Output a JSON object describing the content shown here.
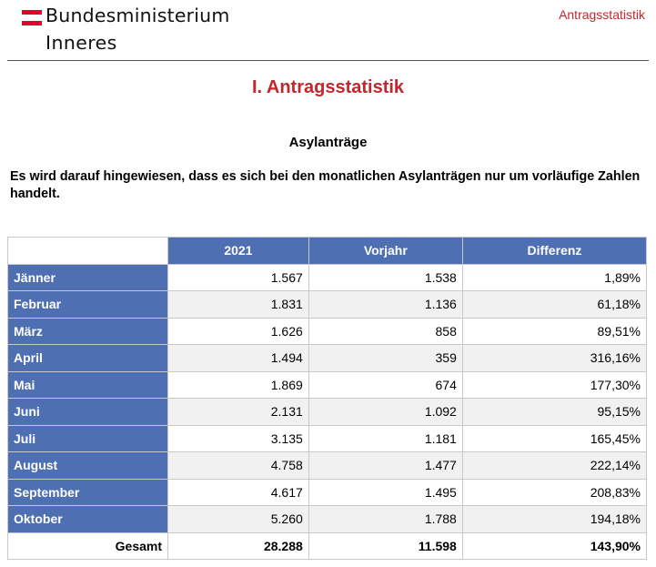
{
  "header": {
    "logo_line1": "Bundesministerium",
    "logo_line2": "Inneres",
    "right_label": "Antragsstatistik"
  },
  "title": "I.  Antragsstatistik",
  "subtitle": "Asylanträge",
  "notice": "Es wird darauf hingewiesen, dass es sich bei den monatlichen Asylanträgen nur um vorläufige Zahlen handelt.",
  "table": {
    "columns": [
      "2021",
      "Vorjahr",
      "Differenz"
    ],
    "rows": [
      {
        "month": "Jänner",
        "year2021": "1.567",
        "prior": "1.538",
        "diff": "1,89%"
      },
      {
        "month": "Februar",
        "year2021": "1.831",
        "prior": "1.136",
        "diff": "61,18%"
      },
      {
        "month": "März",
        "year2021": "1.626",
        "prior": "858",
        "diff": "89,51%"
      },
      {
        "month": "April",
        "year2021": "1.494",
        "prior": "359",
        "diff": "316,16%"
      },
      {
        "month": "Mai",
        "year2021": "1.869",
        "prior": "674",
        "diff": "177,30%"
      },
      {
        "month": "Juni",
        "year2021": "2.131",
        "prior": "1.092",
        "diff": "95,15%"
      },
      {
        "month": "Juli",
        "year2021": "3.135",
        "prior": "1.181",
        "diff": "165,45%"
      },
      {
        "month": "August",
        "year2021": "4.758",
        "prior": "1.477",
        "diff": "222,14%"
      },
      {
        "month": "September",
        "year2021": "4.617",
        "prior": "1.495",
        "diff": "208,83%"
      },
      {
        "month": "Oktober",
        "year2021": "5.260",
        "prior": "1.788",
        "diff": "194,18%"
      }
    ],
    "total": {
      "label": "Gesamt",
      "year2021": "28.288",
      "prior": "11.598",
      "diff": "143,90%"
    }
  },
  "colors": {
    "accent_red": "#c1272d",
    "flag_red": "#e4002b",
    "header_blue": "#4e6fb1"
  }
}
